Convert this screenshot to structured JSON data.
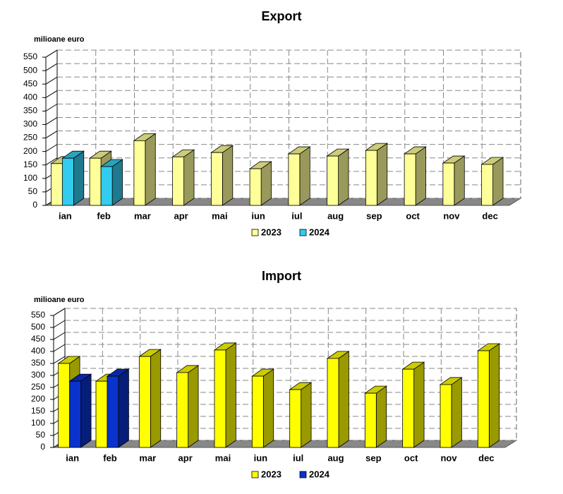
{
  "chart_data": [
    {
      "type": "bar3d",
      "title": "Export",
      "y_label": "milioane euro",
      "categories": [
        "ian",
        "feb",
        "mar",
        "apr",
        "mai",
        "iun",
        "iul",
        "aug",
        "sep",
        "oct",
        "nov",
        "dec"
      ],
      "series": [
        {
          "name": "2023",
          "color": "#ffff99",
          "values": [
            155,
            175,
            240,
            180,
            196,
            136,
            191,
            183,
            204,
            191,
            157,
            152
          ]
        },
        {
          "name": "2024",
          "color": "#33ccee",
          "values": [
            175,
            144,
            null,
            null,
            null,
            null,
            null,
            null,
            null,
            null,
            null,
            null
          ]
        }
      ],
      "ylim": [
        0,
        550
      ],
      "yticks": [
        0,
        50,
        100,
        150,
        200,
        250,
        300,
        350,
        400,
        450,
        500,
        550
      ],
      "grid": true
    },
    {
      "type": "bar3d",
      "title": "Import",
      "y_label": "milioane euro",
      "categories": [
        "ian",
        "feb",
        "mar",
        "apr",
        "mai",
        "iun",
        "iul",
        "aug",
        "sep",
        "oct",
        "nov",
        "dec"
      ],
      "series": [
        {
          "name": "2023",
          "color": "#ffff00",
          "values": [
            350,
            276,
            379,
            312,
            406,
            297,
            241,
            371,
            226,
            326,
            262,
            403
          ]
        },
        {
          "name": "2024",
          "color": "#0a32cc",
          "values": [
            276,
            297,
            null,
            null,
            null,
            null,
            null,
            null,
            null,
            null,
            null,
            null
          ]
        }
      ],
      "ylim": [
        0,
        550
      ],
      "yticks": [
        0,
        50,
        100,
        150,
        200,
        250,
        300,
        350,
        400,
        450,
        500,
        550
      ],
      "grid": true
    }
  ]
}
